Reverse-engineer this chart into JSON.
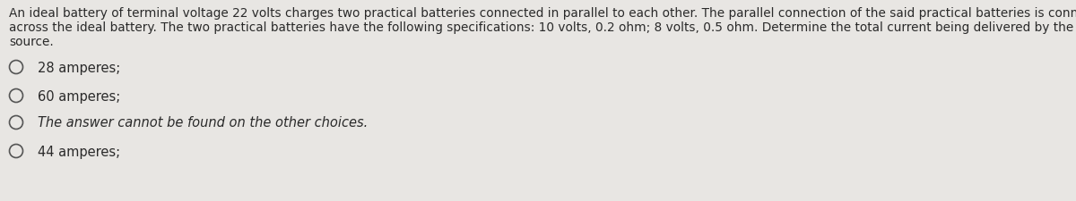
{
  "background_color": "#e8e6e3",
  "question_lines": [
    "An ideal battery of terminal voltage 22 volts charges two practical batteries connected in parallel to each other. The parallel connection of the said practical batteries is connected",
    "across the ideal battery. The two practical batteries have the following specifications: 10 volts, 0.2 ohm; 8 volts, 0.5 ohm. Determine the total current being delivered by the",
    "source."
  ],
  "question_fontsize": 9.8,
  "choices": [
    {
      "text": "28 amperes;",
      "italic": false
    },
    {
      "text": "60 amperes;",
      "italic": false
    },
    {
      "text": "The answer cannot be found on the other choices.",
      "italic": true
    },
    {
      "text": "44 amperes;",
      "italic": false
    }
  ],
  "choice_fontsize": 10.5,
  "text_color": "#2a2a2a",
  "circle_color": "#555555"
}
